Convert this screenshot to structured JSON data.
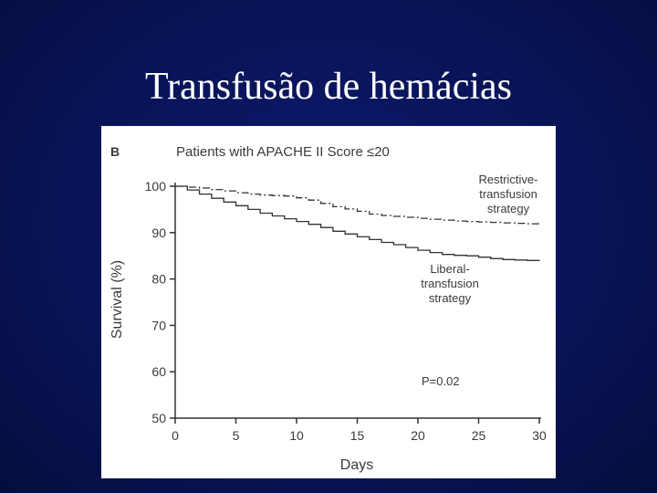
{
  "slide": {
    "title": "Transfusão de hemácias"
  },
  "chart_data": {
    "type": "line",
    "panel_label": "B",
    "title": "Patients with APACHE II Score ≤20",
    "xlabel": "Days",
    "ylabel": "Survival (%)",
    "xlim": [
      0,
      30
    ],
    "ylim": [
      50,
      100
    ],
    "xticks": [
      "0",
      "5",
      "10",
      "15",
      "20",
      "25",
      "30"
    ],
    "yticks": [
      "50",
      "60",
      "70",
      "80",
      "90",
      "100"
    ],
    "grid": false,
    "annotation": "P=0.02",
    "series": [
      {
        "name": "Restrictive-transfusion strategy",
        "label_lines": [
          "Restrictive-",
          "transfusion",
          "strategy"
        ],
        "style": "dash-dot",
        "x": [
          0,
          1,
          2,
          3,
          4,
          5,
          6,
          7,
          8,
          9,
          10,
          11,
          12,
          13,
          14,
          15,
          16,
          17,
          18,
          19,
          20,
          21,
          22,
          23,
          24,
          25,
          26,
          27,
          28,
          29,
          30
        ],
        "y": [
          100,
          99.8,
          99.6,
          99.3,
          99,
          98.6,
          98.3,
          98.1,
          98,
          97.9,
          97.5,
          97,
          96.3,
          95.6,
          95.1,
          94.6,
          94,
          93.7,
          93.5,
          93.3,
          93.1,
          92.9,
          92.7,
          92.5,
          92.4,
          92.3,
          92.2,
          92.1,
          92.0,
          91.9,
          91.8
        ]
      },
      {
        "name": "Liberal-transfusion strategy",
        "label_lines": [
          "Liberal-",
          "transfusion",
          "strategy"
        ],
        "style": "solid",
        "x": [
          0,
          1,
          2,
          3,
          4,
          5,
          6,
          7,
          8,
          9,
          10,
          11,
          12,
          13,
          14,
          15,
          16,
          17,
          18,
          19,
          20,
          21,
          22,
          23,
          24,
          25,
          26,
          27,
          28,
          29,
          30
        ],
        "y": [
          100,
          99.2,
          98.3,
          97.4,
          96.6,
          95.8,
          95,
          94.2,
          93.6,
          93,
          92.4,
          91.8,
          91.1,
          90.3,
          89.7,
          89.1,
          88.5,
          87.9,
          87.4,
          86.8,
          86.2,
          85.7,
          85.3,
          85.1,
          85.0,
          84.7,
          84.4,
          84.2,
          84.1,
          84.0,
          83.9
        ]
      }
    ]
  }
}
